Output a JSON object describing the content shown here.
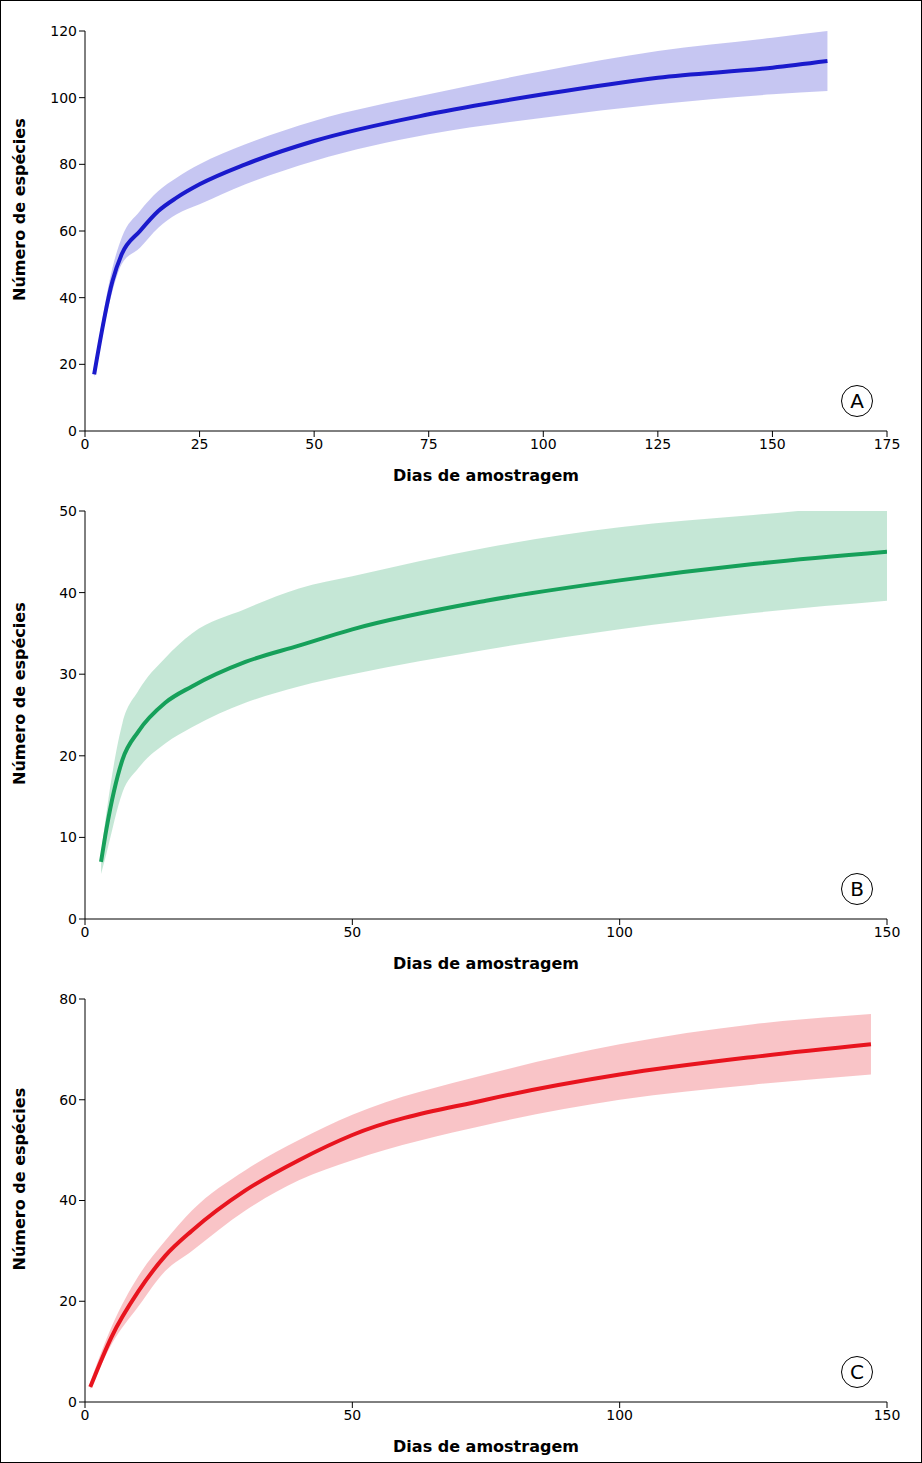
{
  "chart_data": [
    {
      "type": "line",
      "annotation": "A",
      "x_label": "Dias de amostragem",
      "y_label": "Número de espécies",
      "color": "#1a1acc",
      "x": [
        2,
        6,
        8,
        12,
        16,
        20,
        25,
        35,
        50,
        75,
        100,
        125,
        150,
        162
      ],
      "values": [
        17,
        45,
        53,
        60,
        66,
        70,
        74,
        80,
        87,
        95,
        101,
        106,
        109,
        111
      ],
      "lower": [
        16,
        42,
        50,
        55,
        61,
        65,
        68,
        74,
        81,
        89,
        94,
        98,
        101,
        102
      ],
      "upper": [
        18,
        49,
        58,
        66,
        72,
        76,
        80,
        86,
        93,
        101,
        108,
        114,
        118,
        120
      ],
      "xlim": [
        0,
        175
      ],
      "xticks": [
        0,
        25,
        50,
        75,
        100,
        125,
        150,
        175
      ],
      "ylim": [
        0,
        120
      ],
      "yticks": [
        0,
        20,
        40,
        60,
        80,
        100,
        120
      ]
    },
    {
      "type": "line",
      "annotation": "B",
      "x_label": "Dias de amostragem",
      "y_label": "Número de espécies",
      "color": "#16a05a",
      "x": [
        3,
        4,
        7,
        10,
        15,
        20,
        30,
        40,
        50,
        75,
        100,
        125,
        150
      ],
      "values": [
        7,
        11,
        19.5,
        23,
        26.5,
        28.5,
        31.5,
        33.5,
        35.5,
        39,
        41.5,
        43.5,
        45
      ],
      "lower": [
        5.5,
        8,
        15.5,
        18.5,
        21.5,
        23.5,
        26.5,
        28.5,
        30,
        33,
        35.5,
        37.5,
        39
      ],
      "upper": [
        8,
        13,
        24,
        28,
        32,
        35,
        38,
        40.5,
        42,
        45.5,
        48,
        49.5,
        51
      ],
      "xlim": [
        0,
        150
      ],
      "xticks": [
        0,
        50,
        100,
        150
      ],
      "ylim": [
        0,
        50
      ],
      "yticks": [
        0,
        10,
        20,
        30,
        40,
        50
      ]
    },
    {
      "type": "line",
      "annotation": "C",
      "x_label": "Dias de amostragem",
      "y_label": "Número de espécies",
      "color": "#e8141e",
      "x": [
        1,
        5,
        10,
        15,
        20,
        30,
        40,
        50,
        75,
        100,
        125,
        147
      ],
      "values": [
        3,
        13,
        22,
        29,
        34,
        42,
        48,
        53,
        60,
        65,
        68.5,
        71
      ],
      "lower": [
        2.5,
        11.5,
        19,
        26,
        30,
        38,
        44,
        48,
        55,
        60,
        63,
        65
      ],
      "upper": [
        4,
        15,
        25,
        32,
        38,
        46,
        52,
        57,
        65,
        71,
        75,
        77
      ],
      "xlim": [
        0,
        150
      ],
      "xticks": [
        0,
        50,
        100,
        150
      ],
      "ylim": [
        0,
        80
      ],
      "yticks": [
        0,
        20,
        40,
        60,
        80
      ]
    }
  ]
}
